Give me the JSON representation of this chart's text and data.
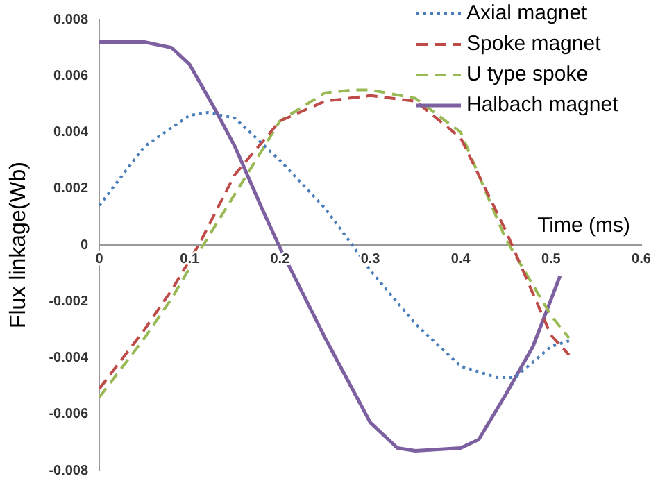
{
  "chart_data": {
    "type": "line",
    "xlabel": "Time (ms)",
    "ylabel": "Flux linkage(Wb)",
    "xlim": [
      0,
      0.6
    ],
    "xticks": [
      0,
      0.1,
      0.2,
      0.3,
      0.4,
      0.5,
      0.6
    ],
    "ylim": [
      -0.008,
      0.008
    ],
    "yticks": [
      -0.008,
      -0.006,
      -0.004,
      -0.002,
      0,
      0.002,
      0.004,
      0.006,
      0.008
    ],
    "grid": false,
    "legend": "top right",
    "marker": "none",
    "series": [
      {
        "name": "Axial magnet",
        "color": "#4a7ebb",
        "line_style": "dotted",
        "x": [
          0,
          0.05,
          0.1,
          0.12,
          0.15,
          0.2,
          0.25,
          0.28,
          0.3,
          0.35,
          0.4,
          0.44,
          0.46,
          0.5,
          0.52
        ],
        "values": [
          0.0014,
          0.0035,
          0.0046,
          0.0047,
          0.0045,
          0.003,
          0.0013,
          0,
          -0.0009,
          -0.0028,
          -0.0043,
          -0.0047,
          -0.0047,
          -0.0036,
          -0.0034
        ]
      },
      {
        "name": "Spoke magnet",
        "color": "#be4b48",
        "line_style": "dashed",
        "x": [
          0,
          0.05,
          0.08,
          0.11,
          0.15,
          0.2,
          0.25,
          0.3,
          0.35,
          0.4,
          0.45,
          0.5,
          0.52
        ],
        "values": [
          -0.0051,
          -0.003,
          -0.0016,
          0,
          0.0025,
          0.0044,
          0.0051,
          0.0053,
          0.0051,
          0.0038,
          0.0005,
          -0.0032,
          -0.0039
        ]
      },
      {
        "name": "U type spoke",
        "color": "#98b954",
        "line_style": "dashed",
        "x": [
          0,
          0.05,
          0.08,
          0.115,
          0.15,
          0.2,
          0.25,
          0.28,
          0.3,
          0.35,
          0.4,
          0.45,
          0.5,
          0.52
        ],
        "values": [
          -0.0054,
          -0.0033,
          -0.0019,
          0,
          0.0018,
          0.0044,
          0.0054,
          0.0055,
          0.0055,
          0.0052,
          0.004,
          0.0002,
          -0.0025,
          -0.0033
        ]
      },
      {
        "name": "Halbach magnet",
        "color": "#7d60a0",
        "line_style": "solid",
        "x": [
          0,
          0.05,
          0.08,
          0.1,
          0.13,
          0.15,
          0.18,
          0.2,
          0.25,
          0.3,
          0.33,
          0.35,
          0.4,
          0.42,
          0.45,
          0.48,
          0.51
        ],
        "values": [
          0.0072,
          0.0072,
          0.007,
          0.0064,
          0.0047,
          0.0035,
          0.0013,
          -0.0001,
          -0.0033,
          -0.0063,
          -0.0072,
          -0.0073,
          -0.0072,
          -0.0069,
          -0.0053,
          -0.0036,
          -0.0011
        ]
      }
    ]
  }
}
